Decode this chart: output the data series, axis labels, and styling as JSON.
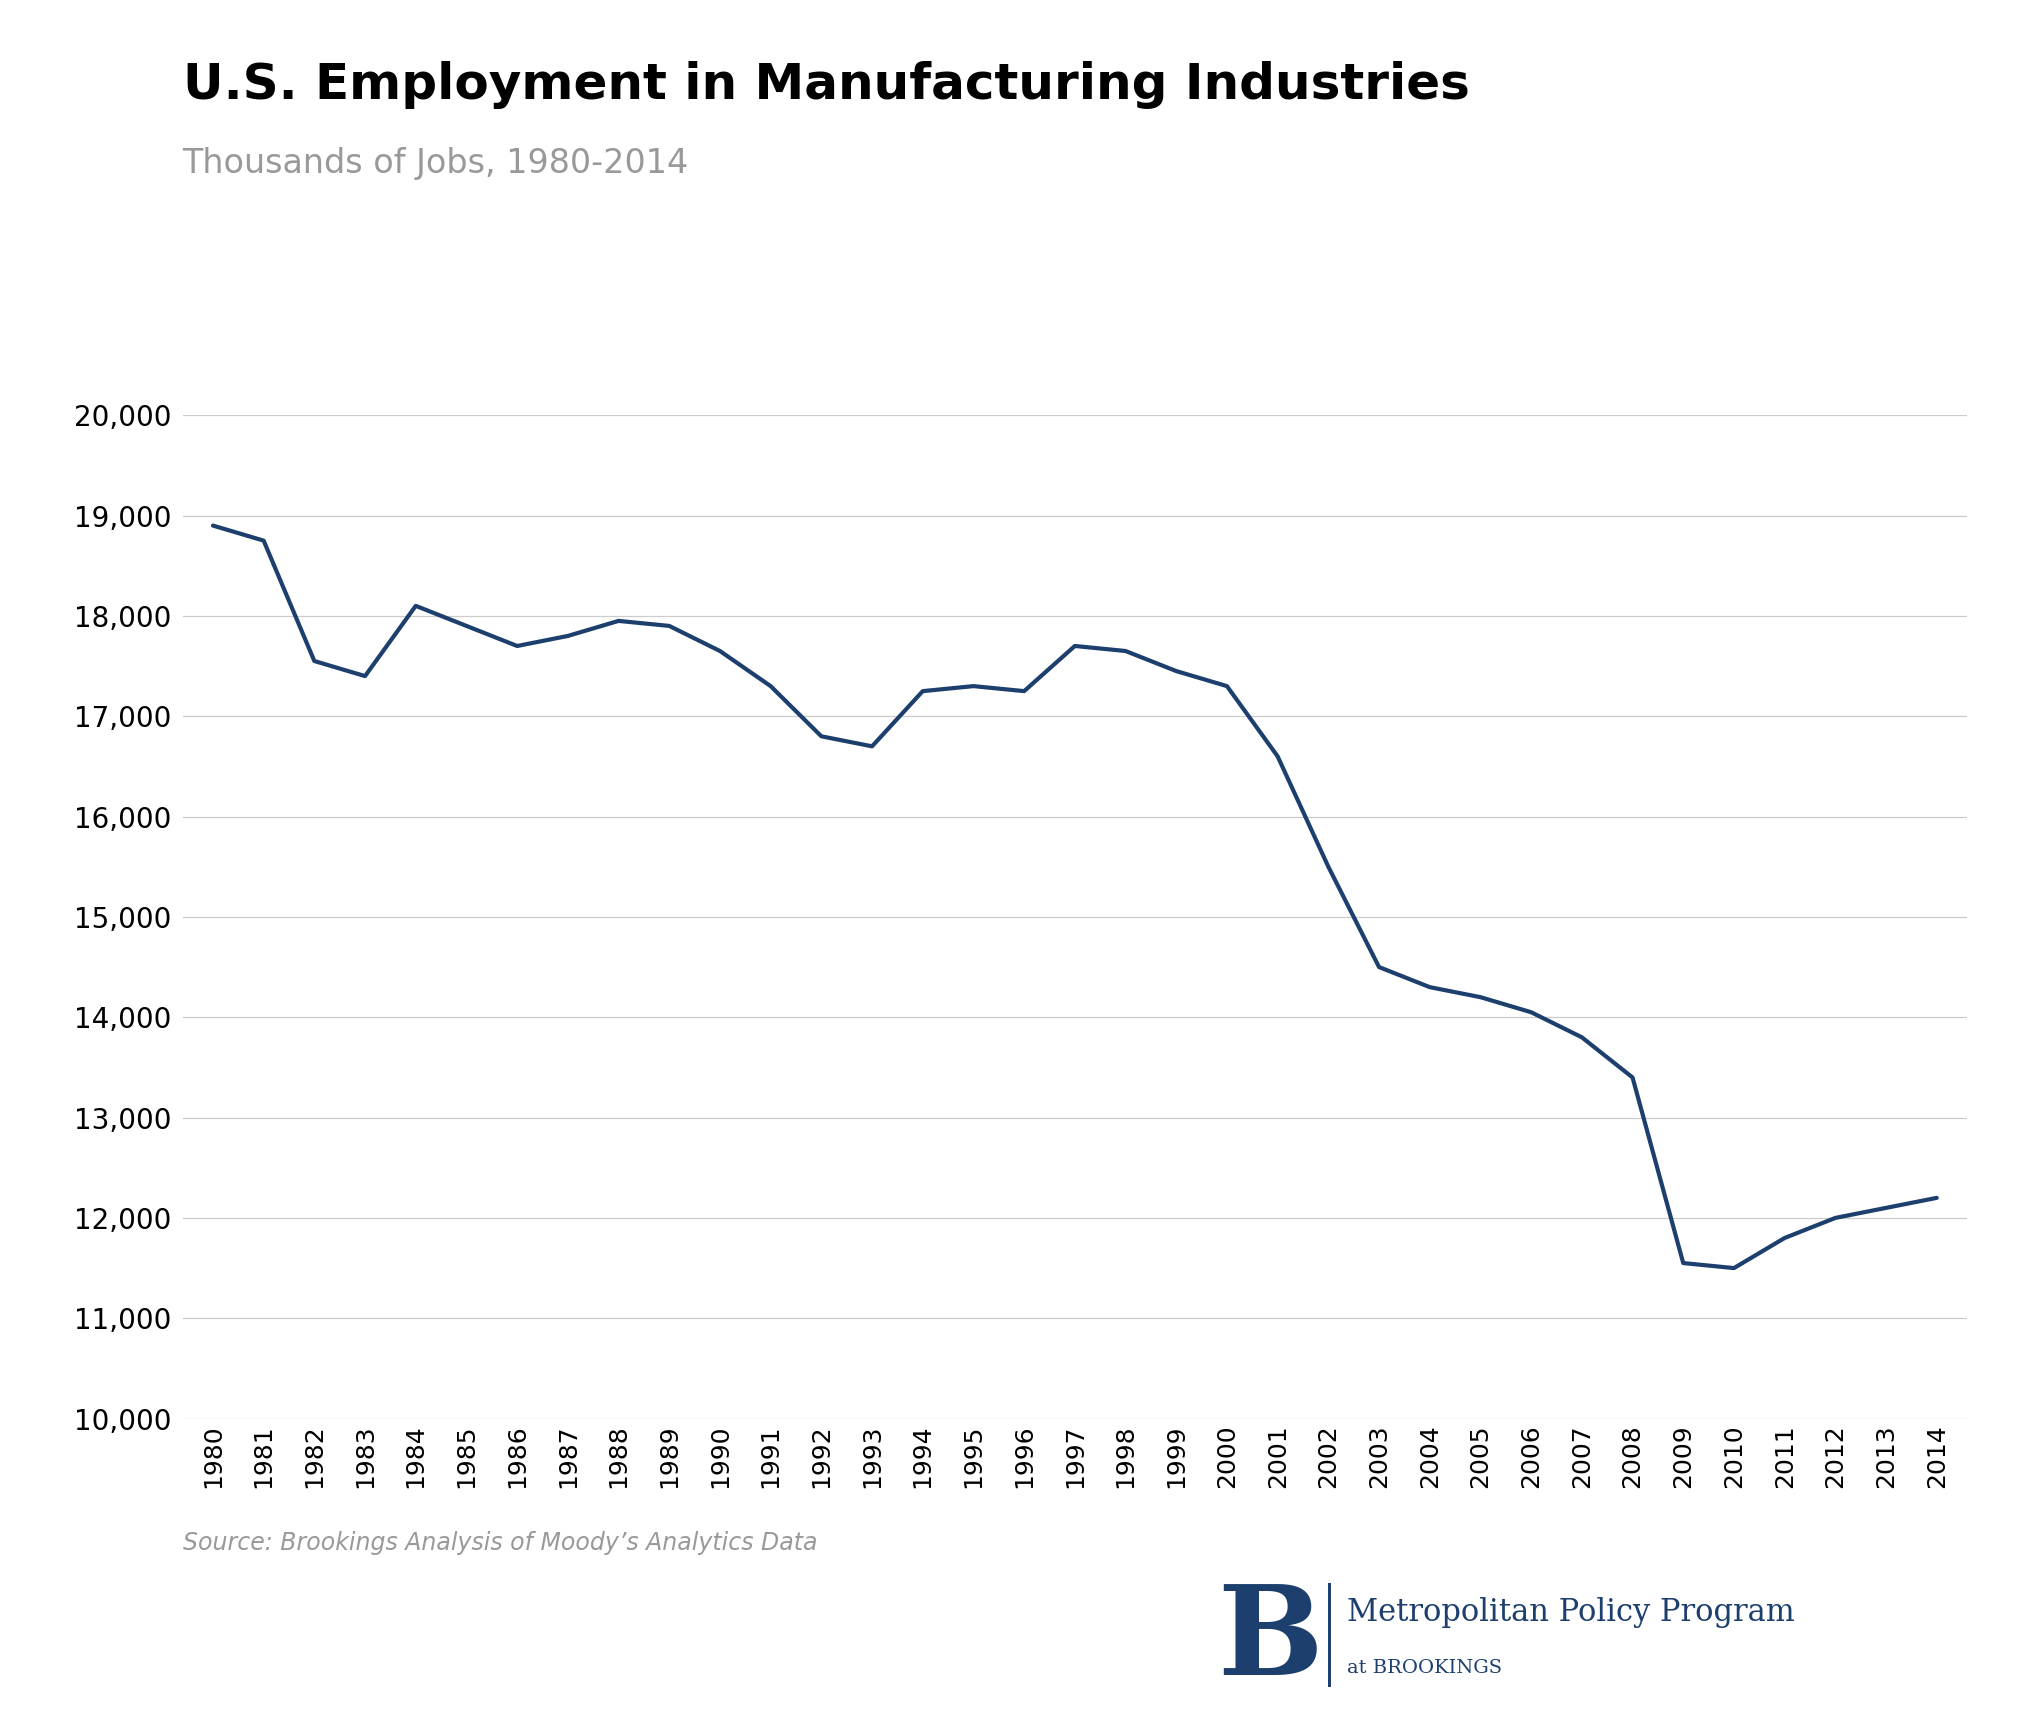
{
  "title": "U.S. Employment in Manufacturing Industries",
  "subtitle": "Thousands of Jobs, 1980-2014",
  "source": "Source: Brookings Analysis of Moody’s Analytics Data",
  "line_color": "#1c3f6e",
  "line_width": 3.0,
  "background_color": "#ffffff",
  "grid_color": "#cccccc",
  "title_color": "#000000",
  "subtitle_color": "#999999",
  "source_color": "#999999",
  "ytick_color": "#000000",
  "xtick_color": "#000000",
  "ylim": [
    10000,
    20000
  ],
  "yticks": [
    10000,
    11000,
    12000,
    13000,
    14000,
    15000,
    16000,
    17000,
    18000,
    19000,
    20000
  ],
  "years": [
    1980,
    1981,
    1982,
    1983,
    1984,
    1985,
    1986,
    1987,
    1988,
    1989,
    1990,
    1991,
    1992,
    1993,
    1994,
    1995,
    1996,
    1997,
    1998,
    1999,
    2000,
    2001,
    2002,
    2003,
    2004,
    2005,
    2006,
    2007,
    2008,
    2009,
    2010,
    2011,
    2012,
    2013,
    2014
  ],
  "values": [
    18900,
    18750,
    17550,
    17400,
    18100,
    17900,
    17700,
    17800,
    17950,
    17900,
    17650,
    17300,
    16800,
    16700,
    17250,
    17300,
    17250,
    17700,
    17650,
    17450,
    17300,
    16600,
    15500,
    14500,
    14300,
    14200,
    14050,
    13800,
    13400,
    11550,
    11500,
    11800,
    12000,
    12100,
    12200
  ],
  "title_fontsize": 36,
  "subtitle_fontsize": 24,
  "ytick_fontsize": 20,
  "xtick_fontsize": 18,
  "source_fontsize": 17,
  "brookings_color": "#1c3f6e",
  "brookings_b_fontsize": 90,
  "brookings_main_fontsize": 22,
  "brookings_sub_fontsize": 14
}
